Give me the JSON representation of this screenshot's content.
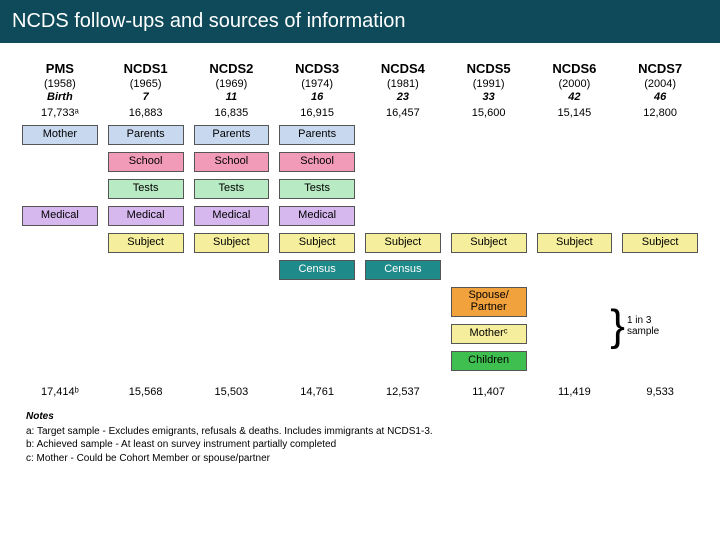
{
  "title": "NCDS follow-ups and sources of information",
  "columns": [
    {
      "head": "PMS",
      "year": "(1958)",
      "age": "Birth",
      "target": "17,733ᵃ",
      "achieved": "17,414ᵇ"
    },
    {
      "head": "NCDS1",
      "year": "(1965)",
      "age": "7",
      "target": "16,883",
      "achieved": "15,568"
    },
    {
      "head": "NCDS2",
      "year": "(1969)",
      "age": "11",
      "target": "16,835",
      "achieved": "15,503"
    },
    {
      "head": "NCDS3",
      "year": "(1974)",
      "age": "16",
      "target": "16,915",
      "achieved": "14,761"
    },
    {
      "head": "NCDS4",
      "year": "(1981)",
      "age": "23",
      "target": "16,457",
      "achieved": "12,537"
    },
    {
      "head": "NCDS5",
      "year": "(1991)",
      "age": "33",
      "target": "15,600",
      "achieved": "11,407"
    },
    {
      "head": "NCDS6",
      "year": "(2000)",
      "age": "42",
      "target": "15,145",
      "achieved": "11,419"
    },
    {
      "head": "NCDS7",
      "year": "(2004)",
      "age": "46",
      "target": "12,800",
      "achieved": "9,533"
    }
  ],
  "sourceRows": [
    {
      "name": "mother",
      "color": "#c8d8ee",
      "cells": [
        "Mother",
        "Parents",
        "Parents",
        "Parents",
        "",
        "",
        "",
        ""
      ]
    },
    {
      "name": "school",
      "color": "#f29bb8",
      "cells": [
        "",
        "School",
        "School",
        "School",
        "",
        "",
        "",
        ""
      ]
    },
    {
      "name": "tests",
      "color": "#b8eac3",
      "cells": [
        "",
        "Tests",
        "Tests",
        "Tests",
        "",
        "",
        "",
        ""
      ]
    },
    {
      "name": "medical",
      "color": "#d6b8ee",
      "cells": [
        "Medical",
        "Medical",
        "Medical",
        "Medical",
        "",
        "",
        "",
        ""
      ]
    },
    {
      "name": "subject",
      "color": "#f5ee9c",
      "cells": [
        "",
        "Subject",
        "Subject",
        "Subject",
        "Subject",
        "Subject",
        "Subject",
        "Subject"
      ]
    },
    {
      "name": "census",
      "color": "#1f8a8a",
      "textColor": "#ffffff",
      "cells": [
        "",
        "",
        "",
        "Census",
        "Census",
        "",
        "",
        ""
      ]
    },
    {
      "name": "spouse",
      "color": "#f2a23c",
      "tall": true,
      "cells": [
        "",
        "",
        "",
        "",
        "",
        "Spouse/\nPartner",
        "",
        ""
      ]
    },
    {
      "name": "motherc",
      "color": "#f5ee9c",
      "cells": [
        "",
        "",
        "",
        "",
        "",
        "Motherᶜ",
        "",
        ""
      ]
    },
    {
      "name": "children",
      "color": "#3fbf4f",
      "cells": [
        "",
        "",
        "",
        "",
        "",
        "Children",
        "",
        ""
      ]
    }
  ],
  "bracket": {
    "label": "1 in 3\nsample"
  },
  "notes": {
    "title": "Notes",
    "lines": [
      "a: Target sample - Excludes emigrants, refusals & deaths.  Includes immigrants at NCDS1-3.",
      "b: Achieved sample - At least on survey instrument partially completed",
      "c: Mother - Could be Cohort Member or spouse/partner"
    ]
  }
}
